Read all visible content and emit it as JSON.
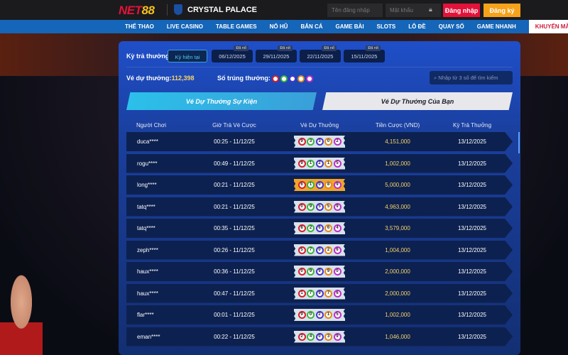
{
  "header": {
    "brand": "NET88",
    "club": "CRYSTAL PALACE",
    "username_placeholder": "Tên đăng nhập",
    "password_placeholder": "Mật khẩu",
    "login": "Đăng nhập",
    "register": "Đăng ký"
  },
  "nav": [
    "THỂ THAO",
    "LIVE CASINO",
    "TABLE GAMES",
    "NỔ HŨ",
    "BẮN CÁ",
    "GAME BÀI",
    "SLOTS",
    "LÔ ĐỀ",
    "QUAY SỐ",
    "GAME NHANH",
    "KHUYẾN MÃI"
  ],
  "period": {
    "label": "Kỳ trả thưởng:",
    "current": "Kỳ hiện tại",
    "tag": "Đã nổ",
    "dates": [
      "06/12/2025",
      "29/11/2025",
      "22/11/2025",
      "15/11/2025"
    ]
  },
  "stats": {
    "tickets_label": "Vé dự thưởng:",
    "tickets_value": "112,398",
    "winning_label": "Số trúng thưởng:",
    "search_placeholder": "Nhập từ 3 số để tìm kiếm"
  },
  "tabs": {
    "event": "Vé Dự Thưởng Sự Kiện",
    "yours": "Vé Dự Thưởng Của Bạn"
  },
  "colors": {
    "balls": [
      "#d4202a",
      "#3bb53b",
      "#4a34c8",
      "#e08a1c",
      "#c02cc8"
    ],
    "accent": "#f6c21a"
  },
  "table": {
    "headers": [
      "Người Chơi",
      "Giờ Trả Vé Cược",
      "Vé Dự Thưởng",
      "Tiền Cược (VND)",
      "Kỳ Trả Thưởng"
    ],
    "rows": [
      {
        "player": "duca****",
        "time": "00:25 - 11/12/25",
        "ticket": "93302",
        "bet": "4,151,000",
        "period": "13/12/2025"
      },
      {
        "player": "rogu****",
        "time": "00:49 - 11/12/25",
        "ticket": "91215",
        "bet": "1,002,000",
        "period": "13/12/2025"
      },
      {
        "player": "long****",
        "time": "00:21 - 11/12/25",
        "ticket": "61089",
        "bet": "5,000,000",
        "period": "13/12/2025",
        "highlight": true
      },
      {
        "player": "tatq****",
        "time": "00:21 - 11/12/25",
        "ticket": "09559",
        "bet": "4,963,000",
        "period": "13/12/2025"
      },
      {
        "player": "tatq****",
        "time": "00:35 - 11/12/25",
        "ticket": "82664",
        "bet": "3,579,000",
        "period": "13/12/2025"
      },
      {
        "player": "zeph****",
        "time": "00:26 - 11/12/25",
        "ticket": "57026",
        "bet": "1,004,000",
        "period": "13/12/2025"
      },
      {
        "player": "haux****",
        "time": "00:36 - 11/12/25",
        "ticket": "09990",
        "bet": "2,000,000",
        "period": "13/12/2025"
      },
      {
        "player": "haux****",
        "time": "00:47 - 11/12/25",
        "ticket": "17976",
        "bet": "2,000,000",
        "period": "13/12/2025"
      },
      {
        "player": "flar****",
        "time": "00:01 - 11/12/25",
        "ticket": "90215",
        "bet": "1,002,000",
        "period": "13/12/2025"
      },
      {
        "player": "eman****",
        "time": "00:22 - 11/12/25",
        "ticket": "24039",
        "bet": "1,046,000",
        "period": "13/12/2025"
      }
    ]
  }
}
